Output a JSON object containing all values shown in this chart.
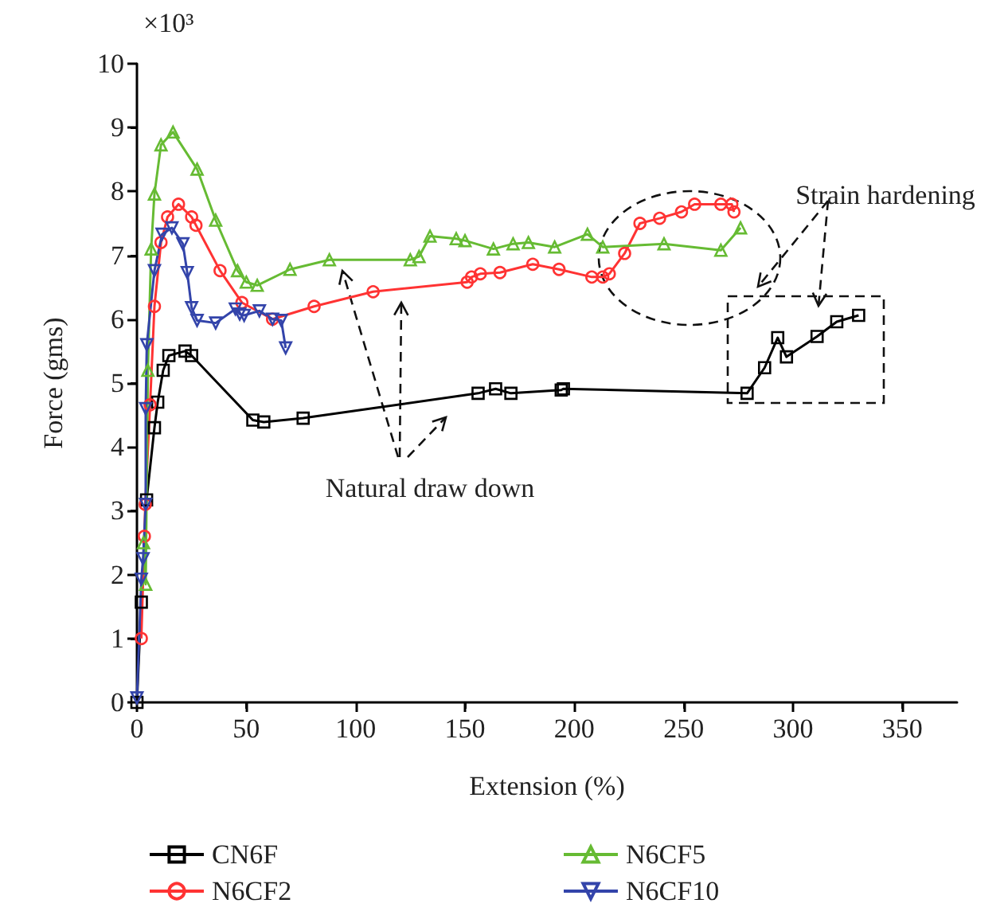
{
  "chart_data": {
    "type": "line",
    "xlabel": "Extension (%)",
    "ylabel": "Force (gms)",
    "annotations": [
      "×10³",
      "Natural draw down",
      "Strain hardening"
    ],
    "xlim": [
      0,
      375
    ],
    "xticks": [
      0,
      50,
      100,
      150,
      200,
      250,
      300,
      350
    ],
    "ylim": [
      0,
      10
    ],
    "yticks": [
      0,
      1,
      2,
      3,
      4,
      5,
      6,
      7,
      8,
      9,
      10
    ],
    "grid": false,
    "legend": "bottom",
    "line_style": "solid",
    "series": [
      {
        "name": "CN6F",
        "color": "#000000",
        "marker": "square",
        "x": [
          0,
          2,
          4.4,
          8,
          9.5,
          12,
          14.6,
          22,
          25,
          53,
          58,
          76,
          156,
          164,
          171,
          194,
          195,
          279,
          287,
          293,
          297,
          311,
          320,
          330
        ],
        "values": [
          0,
          1.57,
          3.17,
          4.3,
          4.7,
          5.2,
          5.43,
          5.5,
          5.43,
          4.42,
          4.39,
          4.45,
          4.84,
          4.91,
          4.84,
          4.89,
          4.91,
          4.84,
          5.24,
          5.71,
          5.41,
          5.73,
          5.96,
          6.06
        ]
      },
      {
        "name": "N6CF2",
        "color": "#ff3333",
        "marker": "circle",
        "x": [
          2,
          3.4,
          3.8,
          6,
          8,
          11,
          14,
          19,
          25,
          27,
          38,
          48,
          62,
          81,
          108,
          151,
          153,
          157,
          166,
          181,
          193,
          208,
          213,
          216,
          223,
          230,
          239,
          249,
          255,
          267,
          272,
          273
        ],
        "values": [
          1.0,
          2.6,
          3.1,
          4.66,
          6.2,
          7.2,
          7.6,
          7.8,
          7.6,
          7.47,
          6.76,
          6.26,
          6.0,
          6.2,
          6.43,
          6.58,
          6.66,
          6.71,
          6.73,
          6.86,
          6.78,
          6.66,
          6.66,
          6.71,
          7.03,
          7.5,
          7.58,
          7.68,
          7.8,
          7.8,
          7.8,
          7.68
        ]
      },
      {
        "name": "N6CF5",
        "color": "#66bb33",
        "marker": "triangle",
        "x": [
          3,
          4,
          5,
          6.5,
          8,
          11,
          16.5,
          27.5,
          36,
          46,
          50,
          55,
          70,
          88,
          125,
          129,
          134,
          146,
          150,
          163,
          172,
          179,
          191,
          206,
          213,
          241,
          267,
          276
        ],
        "values": [
          2.5,
          1.85,
          5.2,
          7.1,
          7.96,
          8.73,
          8.93,
          8.35,
          7.55,
          6.76,
          6.58,
          6.53,
          6.78,
          6.93,
          6.93,
          6.98,
          7.3,
          7.26,
          7.23,
          7.1,
          7.18,
          7.2,
          7.13,
          7.33,
          7.13,
          7.18,
          7.08,
          7.43
        ]
      },
      {
        "name": "N6CF10",
        "color": "#3344aa",
        "marker": "triangle_down",
        "x": [
          0,
          2,
          2.8,
          4,
          4,
          4.5,
          8,
          11.5,
          16,
          21,
          23,
          25,
          27.5,
          36,
          45,
          47,
          49,
          56,
          62,
          66,
          68
        ],
        "values": [
          0.07,
          1.93,
          2.25,
          3.1,
          4.6,
          5.6,
          6.76,
          7.33,
          7.43,
          7.18,
          6.73,
          6.18,
          5.98,
          5.94,
          6.16,
          6.08,
          6.06,
          6.13,
          6.0,
          5.98,
          5.55
        ]
      }
    ]
  }
}
